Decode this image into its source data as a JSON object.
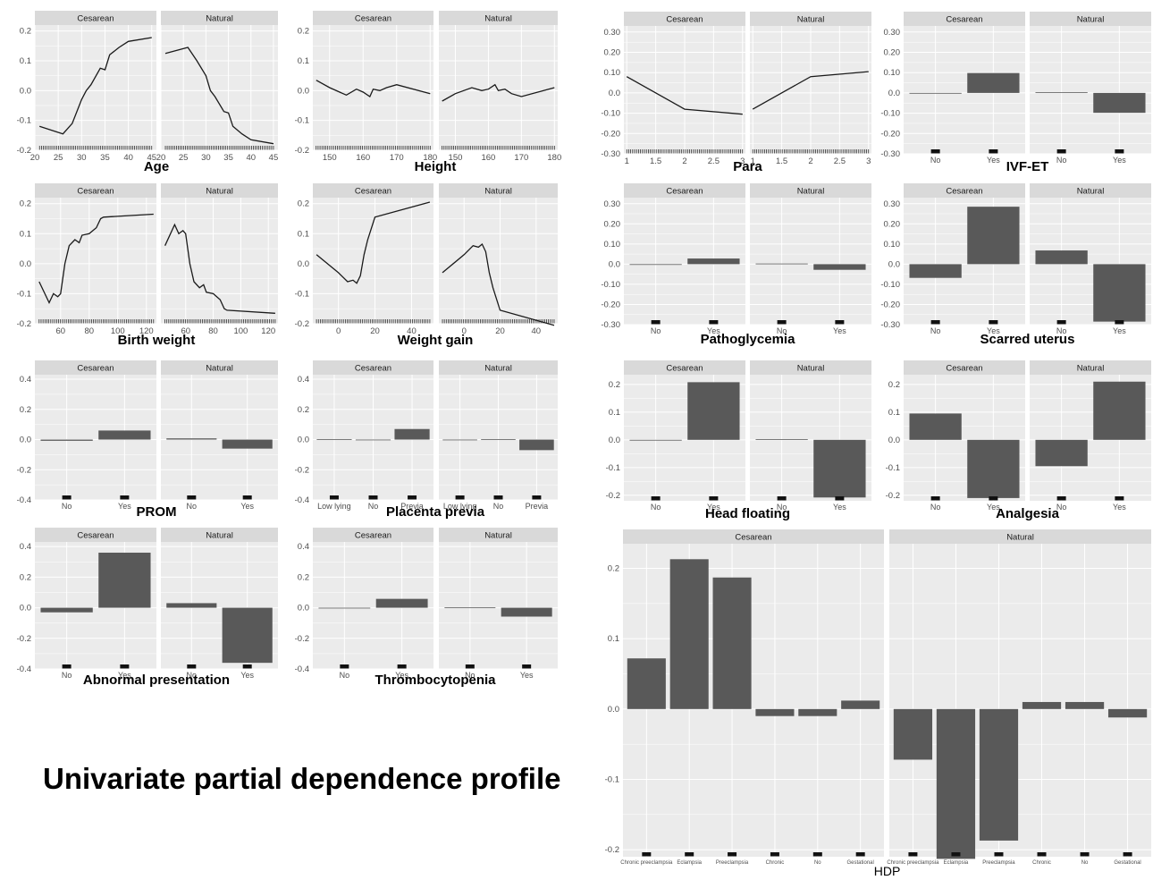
{
  "page_title": "Univariate partial dependence profile",
  "colors": {
    "panel_bg": "#ebebeb",
    "strip_bg": "#d9d9d9",
    "grid": "#ffffff",
    "bar": "#595959",
    "line": "#1a1a1a",
    "text": "#4d4d4d",
    "label": "#000000"
  },
  "chart_data": [
    {
      "id": "age",
      "type": "line",
      "xlabel": "Age",
      "facets": [
        "Cesarean",
        "Natural"
      ],
      "xlim": [
        20,
        46
      ],
      "ylim": [
        -0.2,
        0.22
      ],
      "xticks": [
        20,
        25,
        30,
        35,
        40,
        45
      ],
      "yticks": [
        -0.2,
        -0.1,
        0.0,
        0.1,
        0.2
      ],
      "series": [
        {
          "x": [
            21,
            26,
            28,
            30,
            31,
            32,
            34,
            35,
            36,
            38,
            40,
            45
          ],
          "y": [
            -0.12,
            -0.145,
            -0.11,
            -0.03,
            0.0,
            0.02,
            0.075,
            0.07,
            0.12,
            0.145,
            0.165,
            0.178
          ]
        },
        {
          "x": [
            21,
            26,
            28,
            30,
            31,
            32,
            34,
            35,
            36,
            38,
            40,
            45
          ],
          "y": [
            0.125,
            0.145,
            0.1,
            0.05,
            0.0,
            -0.02,
            -0.07,
            -0.075,
            -0.12,
            -0.145,
            -0.165,
            -0.178
          ]
        }
      ]
    },
    {
      "id": "height",
      "type": "line",
      "xlabel": "Height",
      "facets": [
        "Cesarean",
        "Natural"
      ],
      "xlim": [
        145,
        181
      ],
      "ylim": [
        -0.2,
        0.22
      ],
      "xticks": [
        150,
        160,
        170,
        180
      ],
      "yticks": [
        -0.2,
        -0.1,
        0.0,
        0.1,
        0.2
      ],
      "series": [
        {
          "x": [
            146,
            150,
            155,
            158,
            160,
            162,
            163,
            165,
            167,
            170,
            180
          ],
          "y": [
            0.035,
            0.01,
            -0.015,
            0.005,
            -0.005,
            -0.02,
            0.005,
            0.0,
            0.01,
            0.02,
            -0.01
          ]
        },
        {
          "x": [
            146,
            150,
            155,
            158,
            160,
            162,
            163,
            165,
            167,
            170,
            180
          ],
          "y": [
            -0.035,
            -0.01,
            0.01,
            0.0,
            0.005,
            0.02,
            0.0,
            0.005,
            -0.01,
            -0.02,
            0.01
          ]
        }
      ]
    },
    {
      "id": "birth_weight",
      "type": "line",
      "xlabel": "Birth weight",
      "facets": [
        "Cesarean",
        "Natural"
      ],
      "xlim": [
        42,
        127
      ],
      "ylim": [
        -0.2,
        0.22
      ],
      "xticks": [
        60,
        80,
        100,
        120
      ],
      "yticks": [
        -0.2,
        -0.1,
        0.0,
        0.1,
        0.2
      ],
      "series": [
        {
          "x": [
            45,
            52,
            55,
            58,
            60,
            63,
            66,
            70,
            73,
            75,
            80,
            85,
            88,
            90,
            125
          ],
          "y": [
            -0.06,
            -0.13,
            -0.1,
            -0.11,
            -0.1,
            0.0,
            0.06,
            0.08,
            0.07,
            0.095,
            0.1,
            0.12,
            0.15,
            0.155,
            0.165
          ]
        },
        {
          "x": [
            45,
            52,
            55,
            58,
            60,
            63,
            66,
            70,
            73,
            75,
            80,
            85,
            88,
            90,
            125
          ],
          "y": [
            0.06,
            0.13,
            0.1,
            0.11,
            0.1,
            0.0,
            -0.06,
            -0.08,
            -0.07,
            -0.095,
            -0.1,
            -0.12,
            -0.15,
            -0.155,
            -0.165
          ]
        }
      ]
    },
    {
      "id": "weight_gain",
      "type": "line",
      "xlabel": "Weight gain",
      "facets": [
        "Cesarean",
        "Natural"
      ],
      "xlim": [
        -14,
        52
      ],
      "ylim": [
        -0.2,
        0.22
      ],
      "xticks": [
        0,
        20,
        40
      ],
      "yticks": [
        -0.2,
        -0.1,
        0.0,
        0.1,
        0.2
      ],
      "series": [
        {
          "x": [
            -12,
            0,
            5,
            8,
            10,
            12,
            14,
            16,
            20,
            50
          ],
          "y": [
            0.03,
            -0.03,
            -0.06,
            -0.055,
            -0.065,
            -0.04,
            0.03,
            0.08,
            0.155,
            0.205
          ]
        },
        {
          "x": [
            -12,
            0,
            5,
            8,
            10,
            12,
            14,
            16,
            20,
            50
          ],
          "y": [
            -0.03,
            0.03,
            0.06,
            0.055,
            0.065,
            0.04,
            -0.03,
            -0.08,
            -0.155,
            -0.205
          ]
        }
      ]
    },
    {
      "id": "para",
      "type": "line",
      "xlabel": "Para",
      "facets": [
        "Cesarean",
        "Natural"
      ],
      "xlim": [
        0.95,
        3.05
      ],
      "ylim": [
        -0.3,
        0.33
      ],
      "xticks": [
        1.0,
        1.5,
        2.0,
        2.5,
        3.0
      ],
      "yticks": [
        -0.3,
        -0.2,
        -0.1,
        0.0,
        0.1,
        0.2,
        0.3
      ],
      "series": [
        {
          "x": [
            1,
            2,
            3
          ],
          "y": [
            0.08,
            -0.08,
            -0.105
          ]
        },
        {
          "x": [
            1,
            2,
            3
          ],
          "y": [
            -0.08,
            0.08,
            0.105
          ]
        }
      ]
    },
    {
      "id": "ivf_et",
      "type": "bar",
      "xlabel": "IVF-ET",
      "facets": [
        "Cesarean",
        "Natural"
      ],
      "categories": [
        "No",
        "Yes"
      ],
      "ylim": [
        -0.3,
        0.33
      ],
      "yticks": [
        -0.3,
        -0.2,
        -0.1,
        0.0,
        0.1,
        0.2,
        0.3
      ],
      "series": [
        {
          "values": [
            -0.003,
            0.098
          ]
        },
        {
          "values": [
            0.003,
            -0.098
          ]
        }
      ]
    },
    {
      "id": "pathoglycemia",
      "type": "bar",
      "xlabel": "Pathoglycemia",
      "facets": [
        "Cesarean",
        "Natural"
      ],
      "categories": [
        "No",
        "Yes"
      ],
      "ylim": [
        -0.3,
        0.33
      ],
      "yticks": [
        -0.3,
        -0.2,
        -0.1,
        0.0,
        0.1,
        0.2,
        0.3
      ],
      "series": [
        {
          "values": [
            -0.003,
            0.028
          ]
        },
        {
          "values": [
            0.003,
            -0.028
          ]
        }
      ]
    },
    {
      "id": "scarred_uterus",
      "type": "bar",
      "xlabel": "Scarred uterus",
      "facets": [
        "Cesarean",
        "Natural"
      ],
      "categories": [
        "No",
        "Yes"
      ],
      "ylim": [
        -0.3,
        0.33
      ],
      "yticks": [
        -0.3,
        -0.2,
        -0.1,
        0.0,
        0.1,
        0.2,
        0.3
      ],
      "series": [
        {
          "values": [
            -0.068,
            0.285
          ]
        },
        {
          "values": [
            0.068,
            -0.285
          ]
        }
      ]
    },
    {
      "id": "prom",
      "type": "bar",
      "xlabel": "PROM",
      "facets": [
        "Cesarean",
        "Natural"
      ],
      "categories": [
        "No",
        "Yes"
      ],
      "ylim": [
        -0.4,
        0.43
      ],
      "yticks": [
        -0.4,
        -0.2,
        0.0,
        0.2,
        0.4
      ],
      "series": [
        {
          "values": [
            -0.008,
            0.06
          ]
        },
        {
          "values": [
            0.008,
            -0.06
          ]
        }
      ]
    },
    {
      "id": "placenta_previa",
      "type": "bar",
      "xlabel": "Placenta previa",
      "facets": [
        "Cesarean",
        "Natural"
      ],
      "categories": [
        "Low lying",
        "No",
        "Previa"
      ],
      "ylim": [
        -0.4,
        0.43
      ],
      "yticks": [
        -0.4,
        -0.2,
        0.0,
        0.2,
        0.4
      ],
      "series": [
        {
          "values": [
            0.002,
            -0.002,
            0.07
          ]
        },
        {
          "values": [
            -0.002,
            0.002,
            -0.07
          ]
        }
      ]
    },
    {
      "id": "head_floating",
      "type": "bar",
      "xlabel": "Head floating",
      "facets": [
        "Cesarean",
        "Natural"
      ],
      "categories": [
        "No",
        "Yes"
      ],
      "ylim": [
        -0.22,
        0.235
      ],
      "yticks": [
        -0.2,
        -0.1,
        0.0,
        0.1,
        0.2
      ],
      "series": [
        {
          "values": [
            -0.002,
            0.208
          ]
        },
        {
          "values": [
            0.002,
            -0.208
          ]
        }
      ]
    },
    {
      "id": "analgesia",
      "type": "bar",
      "xlabel": "Analgesia",
      "facets": [
        "Cesarean",
        "Natural"
      ],
      "categories": [
        "No",
        "Yes"
      ],
      "ylim": [
        -0.22,
        0.235
      ],
      "yticks": [
        -0.2,
        -0.1,
        0.0,
        0.1,
        0.2
      ],
      "series": [
        {
          "values": [
            0.095,
            -0.21
          ]
        },
        {
          "values": [
            -0.095,
            0.21
          ]
        }
      ]
    },
    {
      "id": "abnormal_presentation",
      "type": "bar",
      "xlabel": "Abnormal presentation",
      "facets": [
        "Cesarean",
        "Natural"
      ],
      "categories": [
        "No",
        "Yes"
      ],
      "ylim": [
        -0.4,
        0.43
      ],
      "yticks": [
        -0.4,
        -0.2,
        0.0,
        0.2,
        0.4
      ],
      "series": [
        {
          "values": [
            -0.03,
            0.36
          ]
        },
        {
          "values": [
            0.03,
            -0.36
          ]
        }
      ]
    },
    {
      "id": "thrombocytopenia",
      "type": "bar",
      "xlabel": "Thrombocytopenia",
      "facets": [
        "Cesarean",
        "Natural"
      ],
      "categories": [
        "No",
        "Yes"
      ],
      "ylim": [
        -0.4,
        0.43
      ],
      "yticks": [
        -0.4,
        -0.2,
        0.0,
        0.2,
        0.4
      ],
      "series": [
        {
          "values": [
            -0.002,
            0.058
          ]
        },
        {
          "values": [
            0.002,
            -0.058
          ]
        }
      ]
    },
    {
      "id": "hdp",
      "type": "bar",
      "xlabel": "HDP",
      "facets": [
        "Cesarean",
        "Natural"
      ],
      "categories": [
        "Chronic preeclampsia",
        "Eclampsia",
        "Preeclampsia",
        "Chronic",
        "No",
        "Gestational"
      ],
      "ylim": [
        -0.21,
        0.235
      ],
      "yticks": [
        -0.2,
        -0.1,
        0.0,
        0.1,
        0.2
      ],
      "series": [
        {
          "values": [
            0.072,
            0.213,
            0.187,
            -0.01,
            -0.01,
            0.012
          ]
        },
        {
          "values": [
            -0.072,
            -0.213,
            -0.187,
            0.01,
            0.01,
            -0.012
          ]
        }
      ]
    }
  ]
}
